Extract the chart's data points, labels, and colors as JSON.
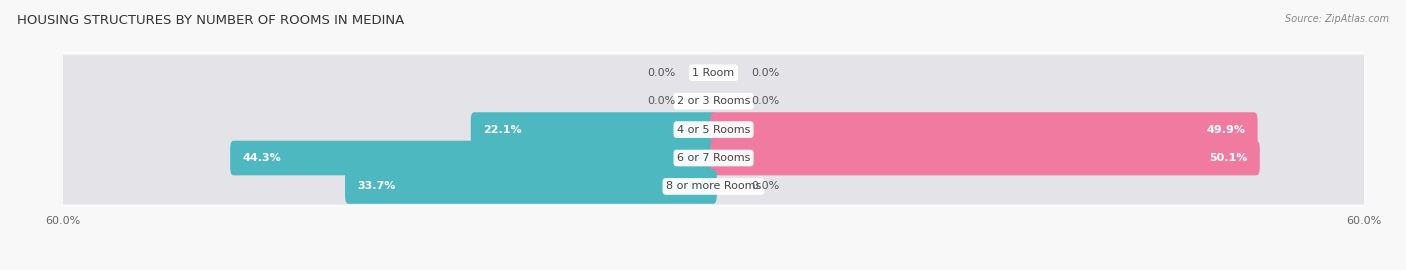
{
  "title": "HOUSING STRUCTURES BY NUMBER OF ROOMS IN MEDINA",
  "source": "Source: ZipAtlas.com",
  "categories": [
    "1 Room",
    "2 or 3 Rooms",
    "4 or 5 Rooms",
    "6 or 7 Rooms",
    "8 or more Rooms"
  ],
  "owner_values": [
    0.0,
    0.0,
    22.1,
    44.3,
    33.7
  ],
  "renter_values": [
    0.0,
    0.0,
    49.9,
    50.1,
    0.0
  ],
  "owner_color": "#4db8c0",
  "renter_color": "#f07aa0",
  "bar_bg_color": "#e4e4e8",
  "axis_max": 60.0,
  "bar_height": 0.62,
  "background_color": "#f8f8f8",
  "row_bg_color": "#f0f0f2",
  "title_fontsize": 9.5,
  "label_fontsize": 8,
  "category_fontsize": 8,
  "legend_fontsize": 8.5,
  "source_fontsize": 7
}
